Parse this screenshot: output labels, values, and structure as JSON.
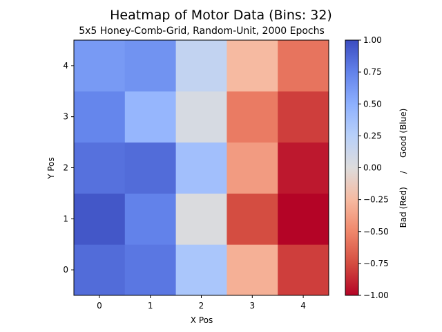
{
  "chart_data": {
    "type": "heatmap",
    "title": "Heatmap of Motor Data (Bins: 32)",
    "subtitle": "5x5 Honey-Comb-Grid, Random-Unit, 2000 Epochs",
    "xlabel": "X Pos",
    "ylabel": "Y Pos",
    "x_categories": [
      "0",
      "1",
      "2",
      "3",
      "4"
    ],
    "y_categories": [
      "0",
      "1",
      "2",
      "3",
      "4"
    ],
    "values": [
      [
        0.85,
        0.8,
        0.33,
        -0.3,
        -0.8
      ],
      [
        0.95,
        0.75,
        0.02,
        -0.75,
        -1.0
      ],
      [
        0.83,
        0.85,
        0.38,
        -0.4,
        -0.93
      ],
      [
        0.73,
        0.45,
        0.05,
        -0.55,
        -0.8
      ],
      [
        0.62,
        0.66,
        0.18,
        -0.25,
        -0.58
      ]
    ],
    "colormap": "coolwarm",
    "colorbar": {
      "label": "Bad (Red)     /     Good (Blue)",
      "range": [
        -1.0,
        1.0
      ],
      "ticks": [
        "1.00",
        "0.75",
        "0.50",
        "0.25",
        "0.00",
        "−0.25",
        "−0.50",
        "−0.75",
        "−1.00"
      ]
    }
  }
}
